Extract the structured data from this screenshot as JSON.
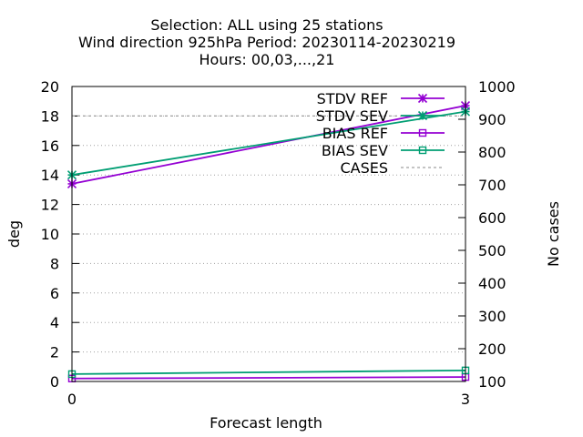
{
  "chart_data": {
    "type": "line",
    "title_lines": [
      "Selection: ALL using    25 stations",
      "Wind direction 925hPa   Period: 20230114-20230219",
      "Hours:  00,03,...,21"
    ],
    "xlabel": "Forecast length",
    "ylabel": "deg",
    "y2label": "No cases",
    "xlim": [
      0,
      3
    ],
    "ylim": [
      0,
      20
    ],
    "y2lim": [
      100,
      1000
    ],
    "x_ticks": [
      "0",
      "3"
    ],
    "y_ticks": [
      "0",
      "2",
      "4",
      "6",
      "8",
      "10",
      "12",
      "14",
      "16",
      "18",
      "20"
    ],
    "y2_ticks": [
      "100",
      "200",
      "300",
      "400",
      "500",
      "600",
      "700",
      "800",
      "900",
      "1000"
    ],
    "grid": "horizontal dotted",
    "legend_position": "top-right",
    "x": [
      0,
      3
    ],
    "series": [
      {
        "name": "STDV REF",
        "axis": "y",
        "values": [
          13.4,
          18.7
        ],
        "color": "#9400d3",
        "marker": "x-star",
        "dash": "solid"
      },
      {
        "name": "STDV SEV",
        "axis": "y",
        "values": [
          14.0,
          18.3
        ],
        "color": "#009e73",
        "marker": "x-star",
        "dash": "solid"
      },
      {
        "name": "BIAS REF",
        "axis": "y",
        "values": [
          0.2,
          0.3
        ],
        "color": "#9400d3",
        "marker": "square",
        "dash": "solid"
      },
      {
        "name": "BIAS SEV",
        "axis": "y",
        "values": [
          0.5,
          0.75
        ],
        "color": "#009e73",
        "marker": "square",
        "dash": "solid"
      },
      {
        "name": "CASES",
        "axis": "y2",
        "values": [
          910,
          910
        ],
        "color": "#a0a0a0",
        "marker": "none",
        "dash": "dashed"
      }
    ]
  }
}
